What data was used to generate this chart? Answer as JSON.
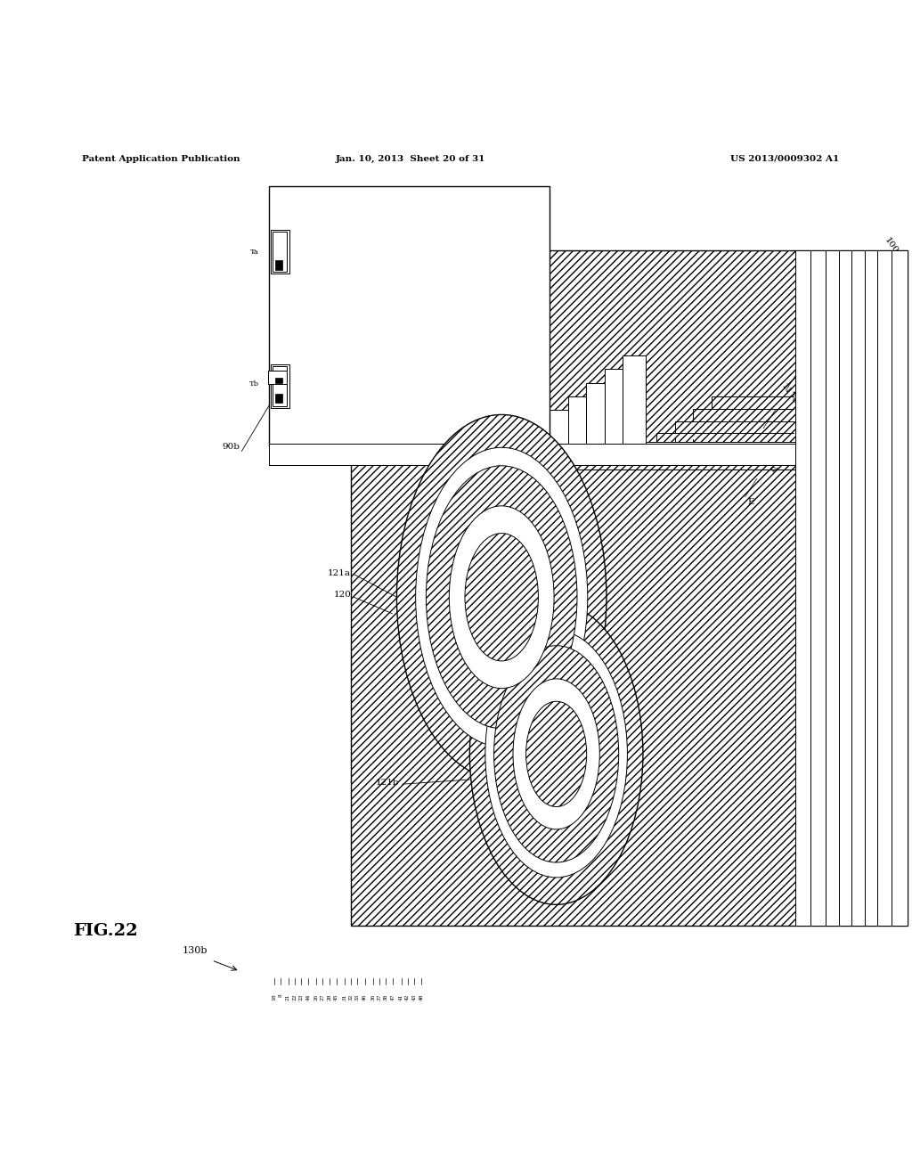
{
  "header_left": "Patent Application Publication",
  "header_center": "Jan. 10, 2013  Sheet 20 of 31",
  "header_right": "US 2013/0009302 A1",
  "fig_label": "FIG.22",
  "background_color": "#ffffff",
  "line_color": "#000000"
}
